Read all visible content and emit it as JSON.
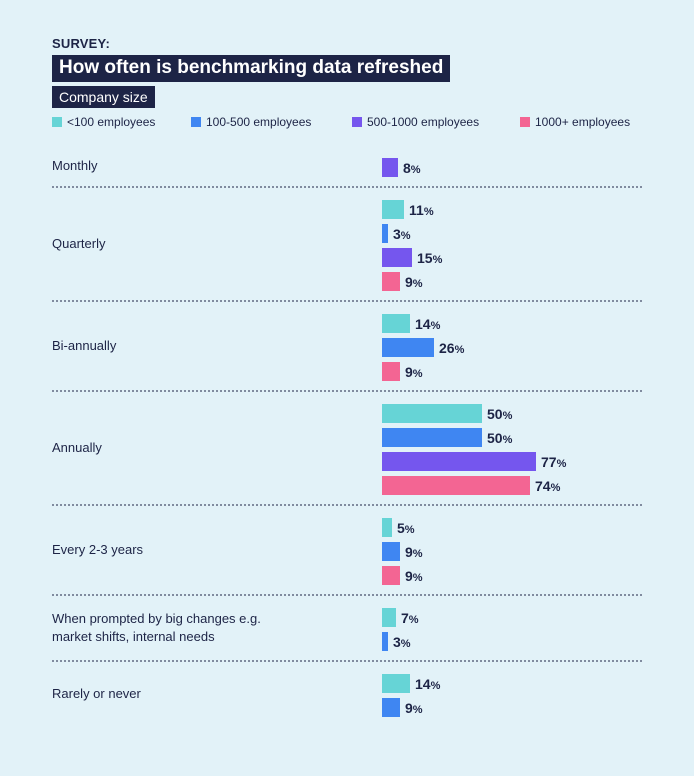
{
  "header": {
    "eyebrow": "SURVEY:",
    "title": "How often is benchmarking data refreshed",
    "subtitle": "Company size"
  },
  "colors": {
    "background": "#e2f2f8",
    "ink": "#1d2446",
    "divider": "#1d2446"
  },
  "chart_data": {
    "type": "bar",
    "orientation": "horizontal",
    "grouped": true,
    "value_suffix": "%",
    "legend_position": "top",
    "series": [
      {
        "key": "lt100",
        "name": "<100 employees",
        "color": "#66d4d6"
      },
      {
        "key": "s100",
        "name": "100-500 employees",
        "color": "#3f86f2"
      },
      {
        "key": "s500",
        "name": "500-1000 employees",
        "color": "#7556ee"
      },
      {
        "key": "s1000",
        "name": "1000+ employees",
        "color": "#f36593"
      }
    ],
    "categories": [
      {
        "label": [
          "Monthly"
        ],
        "values": {
          "s500": 8
        }
      },
      {
        "label": [
          "Quarterly"
        ],
        "values": {
          "lt100": 11,
          "s100": 3,
          "s500": 15,
          "s1000": 9
        }
      },
      {
        "label": [
          "Bi-annually"
        ],
        "values": {
          "lt100": 14,
          "s100": 26,
          "s1000": 9
        }
      },
      {
        "label": [
          "Annually"
        ],
        "values": {
          "lt100": 50,
          "s100": 50,
          "s500": 77,
          "s1000": 74
        }
      },
      {
        "label": [
          "Every 2-3 years"
        ],
        "values": {
          "lt100": 5,
          "s100": 9,
          "s1000": 9
        }
      },
      {
        "label": [
          "When prompted by big changes e.g.",
          "market shifts, internal needs"
        ],
        "values": {
          "lt100": 7,
          "s100": 3
        }
      },
      {
        "label": [
          "Rarely or never"
        ],
        "values": {
          "lt100": 14,
          "s100": 9
        }
      }
    ]
  }
}
